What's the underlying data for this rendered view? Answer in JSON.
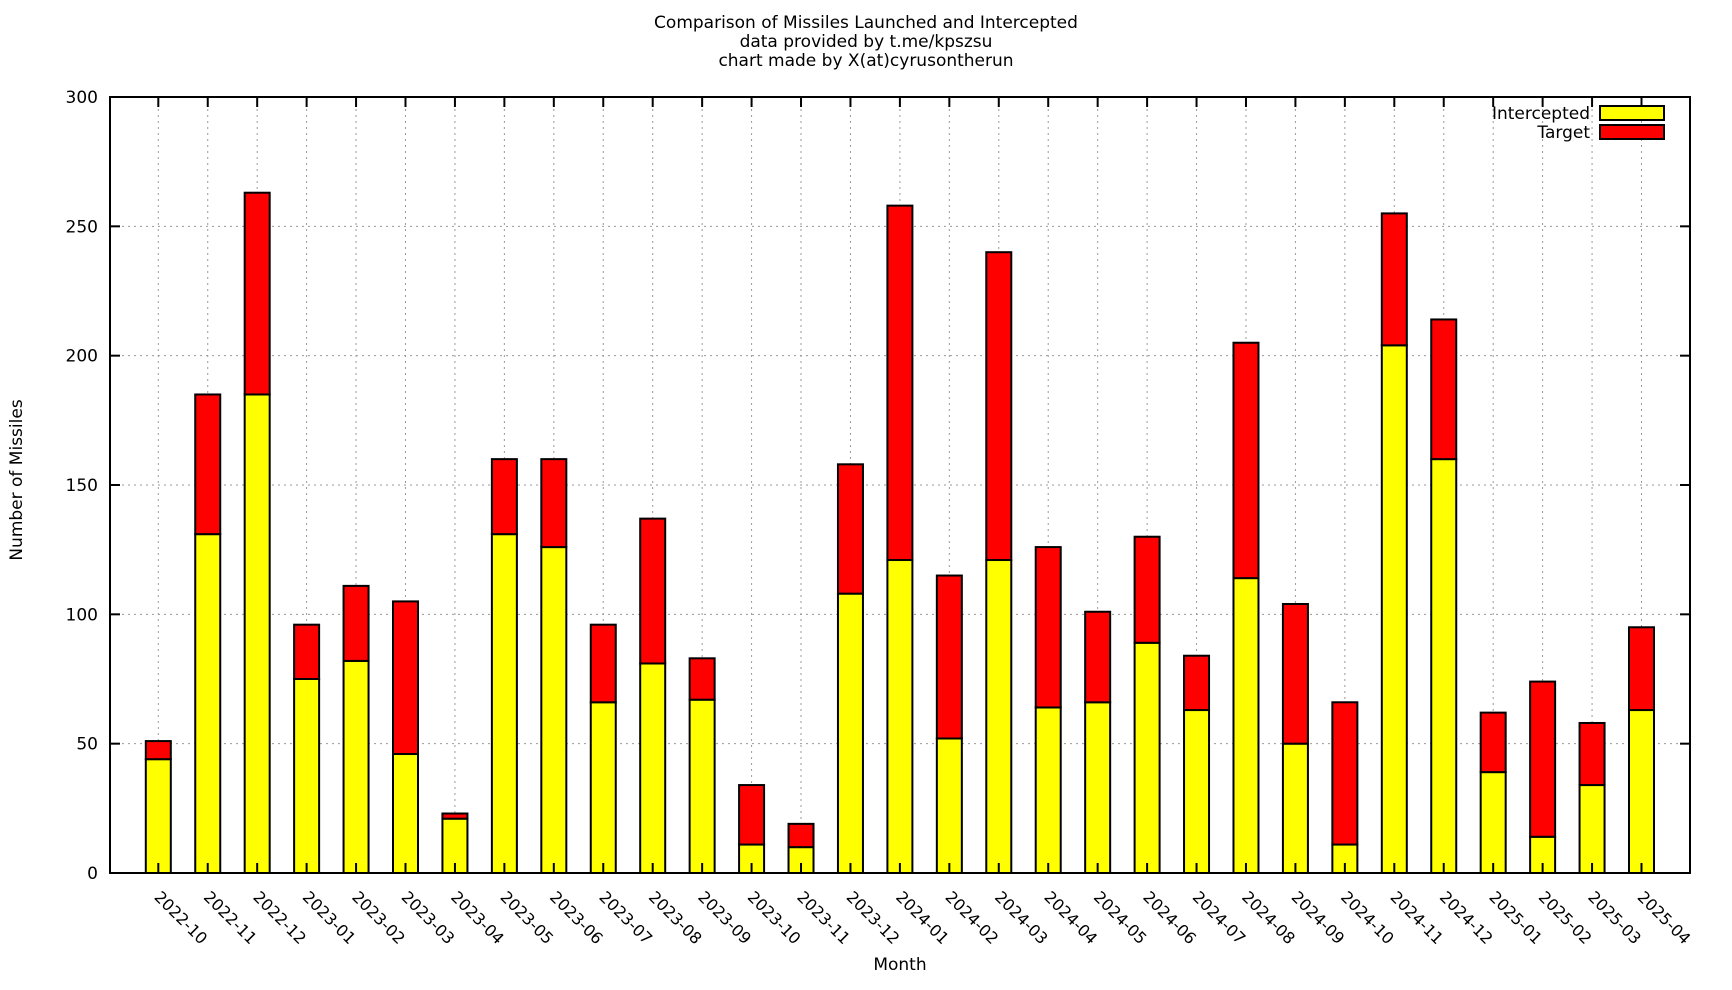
{
  "title_lines": [
    "Comparison of Missiles Launched and Intercepted",
    "data provided by t.me/kpszsu",
    "chart made by X(at)cyrusontherun"
  ],
  "legend": {
    "position": "top-right",
    "items": [
      {
        "label": "Intercepted",
        "color": "#ffff00"
      },
      {
        "label": "Target",
        "color": "#ff0000"
      }
    ]
  },
  "axes": {
    "xlabel": "Month",
    "ylabel": "Number of Missiles",
    "y_ticks": [
      0,
      50,
      100,
      150,
      200,
      250,
      300
    ]
  },
  "chart_data": {
    "type": "bar",
    "stacked": true,
    "title": "Comparison of Missiles Launched and Intercepted",
    "xlabel": "Month",
    "ylabel": "Number of Missiles",
    "ylim": [
      0,
      300
    ],
    "ytick_step": 50,
    "grid": true,
    "legend_position": "top-right",
    "categories": [
      "2022-10",
      "2022-11",
      "2022-12",
      "2023-01",
      "2023-02",
      "2023-03",
      "2023-04",
      "2023-05",
      "2023-06",
      "2023-07",
      "2023-08",
      "2023-09",
      "2023-10",
      "2023-11",
      "2023-12",
      "2024-01",
      "2024-02",
      "2024-03",
      "2024-04",
      "2024-05",
      "2024-06",
      "2024-07",
      "2024-08",
      "2024-09",
      "2024-10",
      "2024-11",
      "2024-12",
      "2025-01",
      "2025-02",
      "2025-03",
      "2025-04"
    ],
    "series": [
      {
        "name": "Intercepted",
        "color": "#ffff00",
        "values": [
          44,
          131,
          185,
          75,
          82,
          46,
          21,
          131,
          126,
          66,
          81,
          67,
          11,
          10,
          108,
          121,
          52,
          121,
          64,
          66,
          89,
          63,
          114,
          50,
          11,
          204,
          160,
          39,
          14,
          34,
          63
        ]
      },
      {
        "name": "Target",
        "color": "#ff0000",
        "values": [
          7,
          54,
          78,
          21,
          29,
          59,
          2,
          29,
          34,
          30,
          56,
          16,
          23,
          9,
          50,
          137,
          63,
          119,
          62,
          35,
          41,
          21,
          91,
          54,
          55,
          51,
          54,
          23,
          60,
          24,
          32
        ]
      }
    ],
    "totals": [
      51,
      185,
      263,
      96,
      111,
      105,
      23,
      160,
      160,
      96,
      137,
      83,
      34,
      19,
      158,
      258,
      115,
      240,
      126,
      101,
      130,
      84,
      205,
      104,
      66,
      255,
      214,
      62,
      74,
      58,
      95
    ]
  },
  "style": {
    "bar_outline": "#000000",
    "frame_color": "#000000",
    "grid_color": "#9a9a9a",
    "background": "#ffffff"
  }
}
